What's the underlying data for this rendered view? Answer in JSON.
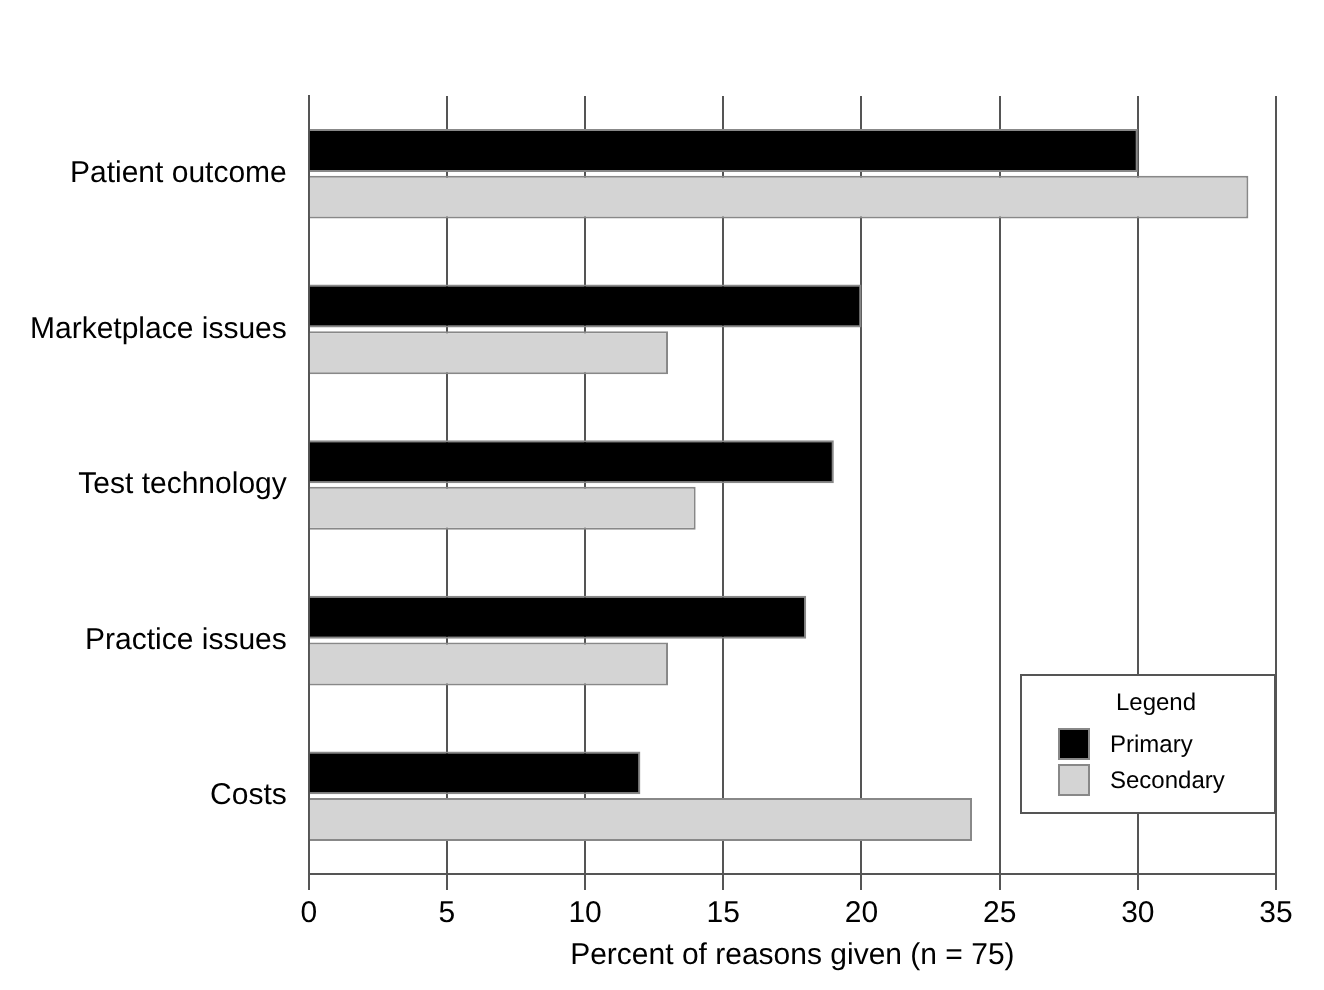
{
  "chart_data": {
    "type": "bar",
    "orientation": "horizontal",
    "xlabel": "Percent of reasons given (n = 75)",
    "legend_title": "Legend",
    "categories": [
      "Patient outcome",
      "Marketplace issues",
      "Test technology",
      "Practice issues",
      "Costs"
    ],
    "series": [
      {
        "name": "Primary",
        "color": "#000000",
        "values": [
          30,
          20,
          19,
          18,
          12
        ]
      },
      {
        "name": "Secondary",
        "color": "#d4d4d4",
        "values": [
          34,
          13,
          14,
          13,
          24
        ]
      }
    ],
    "xlim": [
      0,
      35
    ],
    "xticks": [
      0,
      5,
      10,
      15,
      20,
      25,
      30,
      35
    ],
    "grid": "x",
    "legend": "bottom right"
  }
}
